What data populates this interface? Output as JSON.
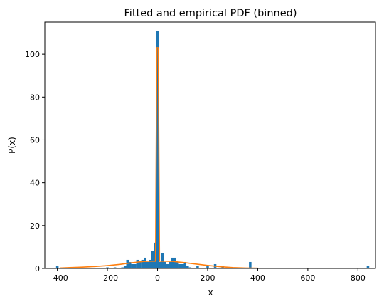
{
  "chart_data": {
    "type": "bar",
    "title": "Fitted and empirical PDF (binned)",
    "xlabel": "x",
    "ylabel": "P(x)",
    "xlim": [
      -450,
      870
    ],
    "ylim": [
      0,
      115
    ],
    "xticks": [
      -400,
      -200,
      0,
      200,
      400,
      600,
      800
    ],
    "yticks": [
      0,
      20,
      40,
      60,
      80,
      100
    ],
    "grid": false,
    "colors": {
      "empirical": "#1f77b4",
      "fitted": "#ff7f0e"
    },
    "series": [
      {
        "type": "bar",
        "bin_width": 10,
        "bins": [
          {
            "x": -400,
            "y": 1
          },
          {
            "x": -330,
            "y": 0.5
          },
          {
            "x": -200,
            "y": 0.5
          },
          {
            "x": -170,
            "y": 0.5
          },
          {
            "x": -140,
            "y": 0.5
          },
          {
            "x": -130,
            "y": 1
          },
          {
            "x": -120,
            "y": 4
          },
          {
            "x": -110,
            "y": 3
          },
          {
            "x": -100,
            "y": 2
          },
          {
            "x": -90,
            "y": 2
          },
          {
            "x": -80,
            "y": 4
          },
          {
            "x": -70,
            "y": 3
          },
          {
            "x": -60,
            "y": 4
          },
          {
            "x": -50,
            "y": 5
          },
          {
            "x": -40,
            "y": 3
          },
          {
            "x": -30,
            "y": 4
          },
          {
            "x": -20,
            "y": 8
          },
          {
            "x": -10,
            "y": 12
          },
          {
            "x": 0,
            "y": 111
          },
          {
            "x": 10,
            "y": 3
          },
          {
            "x": 20,
            "y": 7
          },
          {
            "x": 30,
            "y": 3
          },
          {
            "x": 40,
            "y": 2
          },
          {
            "x": 50,
            "y": 3
          },
          {
            "x": 60,
            "y": 5
          },
          {
            "x": 70,
            "y": 5
          },
          {
            "x": 80,
            "y": 3
          },
          {
            "x": 90,
            "y": 2
          },
          {
            "x": 100,
            "y": 2
          },
          {
            "x": 110,
            "y": 3
          },
          {
            "x": 120,
            "y": 1
          },
          {
            "x": 130,
            "y": 0.5
          },
          {
            "x": 160,
            "y": 1
          },
          {
            "x": 200,
            "y": 1
          },
          {
            "x": 230,
            "y": 2
          },
          {
            "x": 260,
            "y": 1
          },
          {
            "x": 370,
            "y": 3
          },
          {
            "x": 840,
            "y": 1
          }
        ]
      },
      {
        "type": "line",
        "x": [
          -390,
          -350,
          -300,
          -250,
          -200,
          -150,
          -100,
          -60,
          -30,
          -15,
          -8,
          -3,
          3,
          8,
          15,
          30,
          60,
          100,
          150,
          200,
          250,
          300,
          350,
          400
        ],
        "y": [
          0.2,
          0.4,
          0.6,
          0.9,
          1.3,
          1.9,
          2.7,
          3.2,
          3.4,
          3.4,
          3.4,
          103,
          103,
          3.4,
          3.4,
          3.4,
          3.3,
          2.8,
          2.1,
          1.4,
          0.8,
          0.4,
          0.2,
          0.1
        ]
      }
    ]
  }
}
